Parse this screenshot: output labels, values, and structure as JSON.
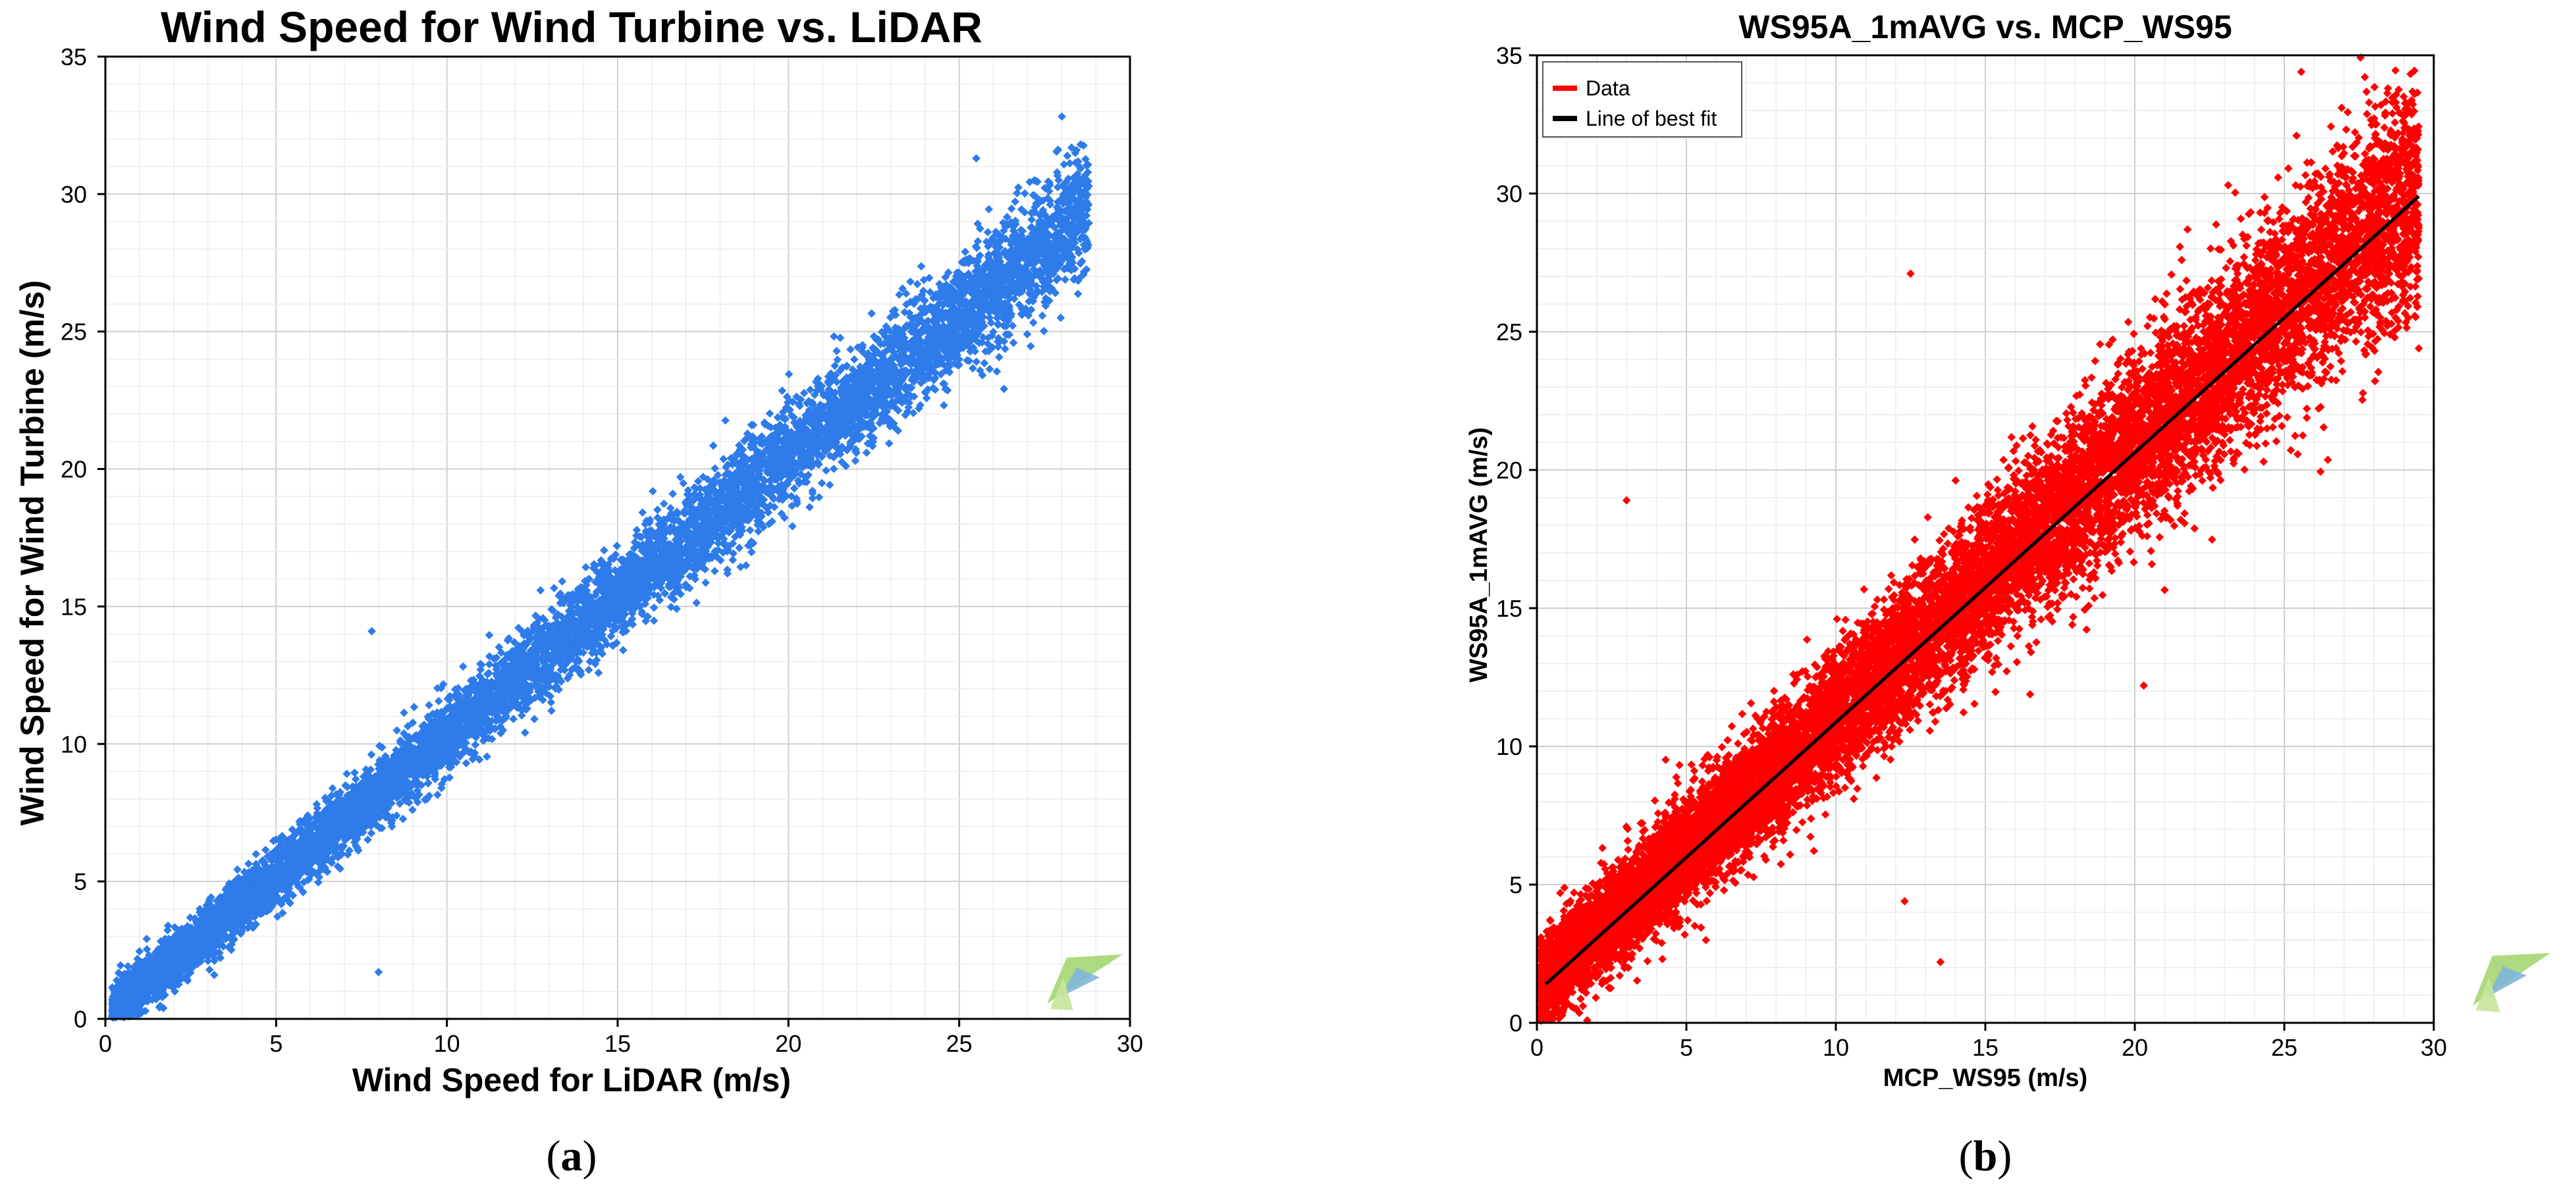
{
  "chart_data": [
    {
      "type": "scatter",
      "title": "Wind Speed for Wind Turbine vs. LiDAR",
      "xlabel": "Wind Speed for LiDAR (m/s)",
      "ylabel": "Wind Speed for Wind Turbine (m/s)",
      "xlim": [
        0,
        30
      ],
      "ylim": [
        0,
        35
      ],
      "xticks": [
        "0",
        "5",
        "10",
        "15",
        "20",
        "25",
        "30"
      ],
      "yticks": [
        "0",
        "5",
        "10",
        "15",
        "20",
        "25",
        "30",
        "35"
      ],
      "grid": true,
      "series": [
        {
          "color": "#2e7bea",
          "relationship": {
            "slope": 1.02,
            "intercept": 0.1
          },
          "x_range": [
            0.2,
            28.8
          ],
          "notable_points": [
            [
              7.8,
              14.1
            ],
            [
              25.5,
              31.3
            ],
            [
              27.2,
              30.5
            ],
            [
              8.0,
              1.7
            ]
          ]
        }
      ],
      "panel_label": {
        "open": "(",
        "letter": "a",
        "close": ")"
      }
    },
    {
      "type": "scatter",
      "title": "WS95A_1mAVG vs. MCP_WS95",
      "xlabel": "MCP_WS95 (m/s)",
      "ylabel": "WS95A_1mAVG (m/s)",
      "xlim": [
        0,
        30
      ],
      "ylim": [
        0,
        35
      ],
      "xticks": [
        "0",
        "5",
        "10",
        "15",
        "20",
        "25",
        "30"
      ],
      "yticks": [
        "0",
        "5",
        "10",
        "15",
        "20",
        "25",
        "30",
        "35"
      ],
      "grid": true,
      "legend": {
        "position": "top-left",
        "entries": [
          "Data",
          "Line of best fit"
        ]
      },
      "series": [
        {
          "name": "Data",
          "color": "#ff0000",
          "relationship": {
            "slope": 0.98,
            "intercept": 1.3
          },
          "x_range": [
            0.1,
            29.5
          ],
          "notable_points": [
            [
              12.5,
              27.1
            ],
            [
              3.0,
              18.9
            ],
            [
              20.3,
              12.2
            ],
            [
              12.3,
              4.4
            ],
            [
              13.5,
              2.2
            ],
            [
              29.5,
              24.4
            ]
          ]
        },
        {
          "name": "Line of best fit",
          "color": "#000000",
          "x": [
            0.3,
            29.5
          ],
          "y": [
            1.4,
            29.9
          ]
        }
      ],
      "panel_label": {
        "open": "(",
        "letter": "b",
        "close": ")"
      }
    }
  ]
}
